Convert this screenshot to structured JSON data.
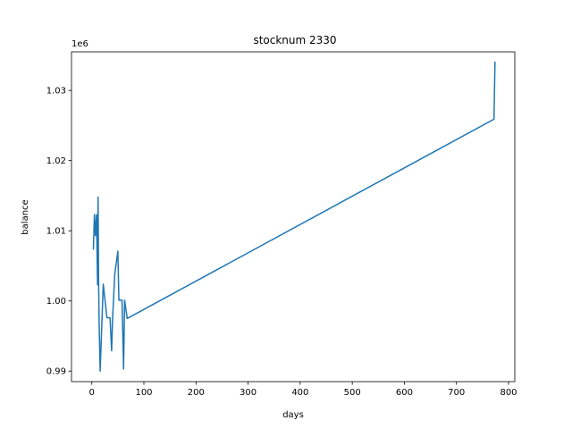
{
  "chart_data": {
    "type": "line",
    "title": "stocknum 2330",
    "xlabel": "days",
    "ylabel": "balance",
    "y_offset_label": "1e6",
    "xlim": [
      -39,
      812
    ],
    "ylim": [
      988500,
      1035500
    ],
    "x_ticks": [
      0,
      100,
      200,
      300,
      400,
      500,
      600,
      700,
      800
    ],
    "x_tick_labels": [
      "0",
      "100",
      "200",
      "300",
      "400",
      "500",
      "600",
      "700",
      "800"
    ],
    "y_ticks": [
      990000,
      1000000,
      1010000,
      1020000,
      1030000
    ],
    "y_tick_labels": [
      "0.99",
      "1.00",
      "1.01",
      "1.02",
      "1.03"
    ],
    "grid": false,
    "line_color": "#1f77b4",
    "series": [
      {
        "x": [
          3,
          5,
          7,
          9,
          11,
          12,
          13,
          14,
          16,
          22,
          29,
          35,
          38,
          40,
          44,
          50,
          52,
          58,
          61,
          63,
          68,
          772,
          774
        ],
        "y": [
          1007400,
          1012300,
          1009300,
          1012300,
          1002300,
          1014800,
          1002800,
          997000,
          990000,
          1002400,
          997600,
          997600,
          992900,
          997600,
          1003800,
          1007100,
          1000100,
          1000100,
          990300,
          1000100,
          997500,
          1025900,
          1034000
        ]
      }
    ]
  }
}
